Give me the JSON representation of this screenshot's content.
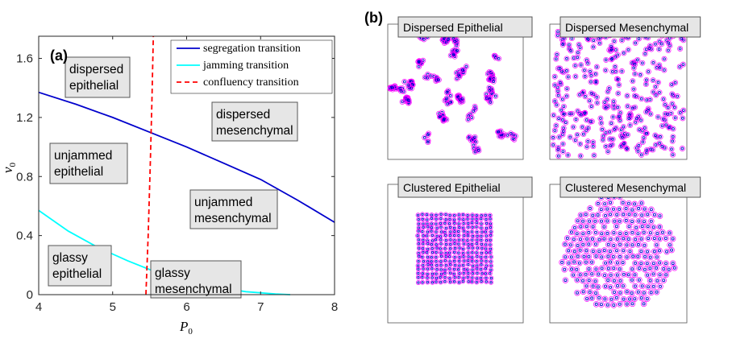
{
  "panel_a_label": "(a)",
  "panel_b_label": "(b)",
  "chart_data": {
    "type": "line",
    "xlabel": "P0",
    "ylabel": "v0",
    "xlim": [
      4,
      8
    ],
    "ylim": [
      0,
      1.75
    ],
    "xticks": [
      "4",
      "5",
      "6",
      "7",
      "8"
    ],
    "yticks": [
      "0",
      "0.4",
      "0.8",
      "1.2",
      "1.6"
    ],
    "legend_position": "top-right",
    "series": [
      {
        "name": "segregation transition",
        "color": "#0000cc",
        "style": "solid",
        "x": [
          4.0,
          4.5,
          5.0,
          5.5,
          6.0,
          6.5,
          7.0,
          7.5,
          8.0
        ],
        "y": [
          1.37,
          1.29,
          1.2,
          1.1,
          1.0,
          0.89,
          0.78,
          0.64,
          0.49
        ]
      },
      {
        "name": "jamming transition",
        "color": "#00ffff",
        "style": "solid",
        "x": [
          4.0,
          4.4,
          4.8,
          5.2,
          5.6,
          6.0,
          6.4,
          6.8,
          7.2,
          7.4
        ],
        "y": [
          0.57,
          0.43,
          0.32,
          0.23,
          0.15,
          0.09,
          0.05,
          0.02,
          0.005,
          0.0
        ]
      },
      {
        "name": "confluency transition",
        "color": "#ff0000",
        "style": "dashed",
        "x": [
          5.45,
          5.48,
          5.51,
          5.53,
          5.55
        ],
        "y": [
          0.0,
          0.4,
          0.9,
          1.3,
          1.75
        ]
      }
    ],
    "regions": [
      {
        "line1": "dispersed",
        "line2": "epithelial",
        "key": "dispersed_epithelial"
      },
      {
        "line1": "dispersed",
        "line2": "mesenchymal",
        "key": "dispersed_mesenchymal"
      },
      {
        "line1": "unjammed",
        "line2": "epithelial",
        "key": "unjammed_epithelial"
      },
      {
        "line1": "unjammed",
        "line2": "mesenchymal",
        "key": "unjammed_mesenchymal"
      },
      {
        "line1": "glassy",
        "line2": "epithelial",
        "key": "glassy_epithelial"
      },
      {
        "line1": "glassy",
        "line2": "mesenchymal",
        "key": "glassy_mesenchymal"
      }
    ]
  },
  "snapshots": [
    {
      "title": "Dispersed Epithelial",
      "key": "dispersed_epithelial"
    },
    {
      "title": "Dispersed Mesenchymal",
      "key": "dispersed_mesenchymal"
    },
    {
      "title": "Clustered Epithelial",
      "key": "clustered_epithelial"
    },
    {
      "title": "Clustered Mesenchymal",
      "key": "clustered_mesenchymal"
    }
  ],
  "colors": {
    "cell_outline": "#ff00ff",
    "cell_center": "#0000cc",
    "axis": "#262626"
  }
}
